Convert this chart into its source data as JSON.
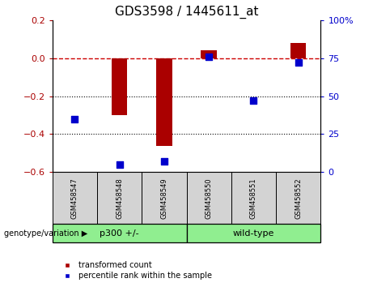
{
  "title": "GDS3598 / 1445611_at",
  "samples": [
    "GSM458547",
    "GSM458548",
    "GSM458549",
    "GSM458550",
    "GSM458551",
    "GSM458552"
  ],
  "red_bars": [
    0.0,
    -0.3,
    -0.46,
    0.04,
    0.0,
    0.08
  ],
  "blue_dots": [
    35,
    5,
    7,
    76,
    47,
    72
  ],
  "groups": [
    {
      "label": "p300 +/-",
      "indices": [
        0,
        1,
        2
      ],
      "color": "#90EE90"
    },
    {
      "label": "wild-type",
      "indices": [
        3,
        4,
        5
      ],
      "color": "#90EE90"
    }
  ],
  "ylim_left": [
    -0.6,
    0.2
  ],
  "ylim_right": [
    0,
    100
  ],
  "yticks_left": [
    0.2,
    0.0,
    -0.2,
    -0.4,
    -0.6
  ],
  "yticks_right": [
    100,
    75,
    50,
    25,
    0
  ],
  "red_color": "#AA0000",
  "blue_color": "#0000CC",
  "zero_line_color": "#CC0000",
  "dotted_line_color": "#000000",
  "bar_width": 0.35,
  "dot_size": 28,
  "legend_items": [
    "transformed count",
    "percentile rank within the sample"
  ],
  "group_label": "genotype/variation",
  "cell_bg": "#d3d3d3",
  "title_fontsize": 11,
  "tick_fontsize": 8,
  "sample_fontsize": 6,
  "group_fontsize": 8,
  "legend_fontsize": 7
}
